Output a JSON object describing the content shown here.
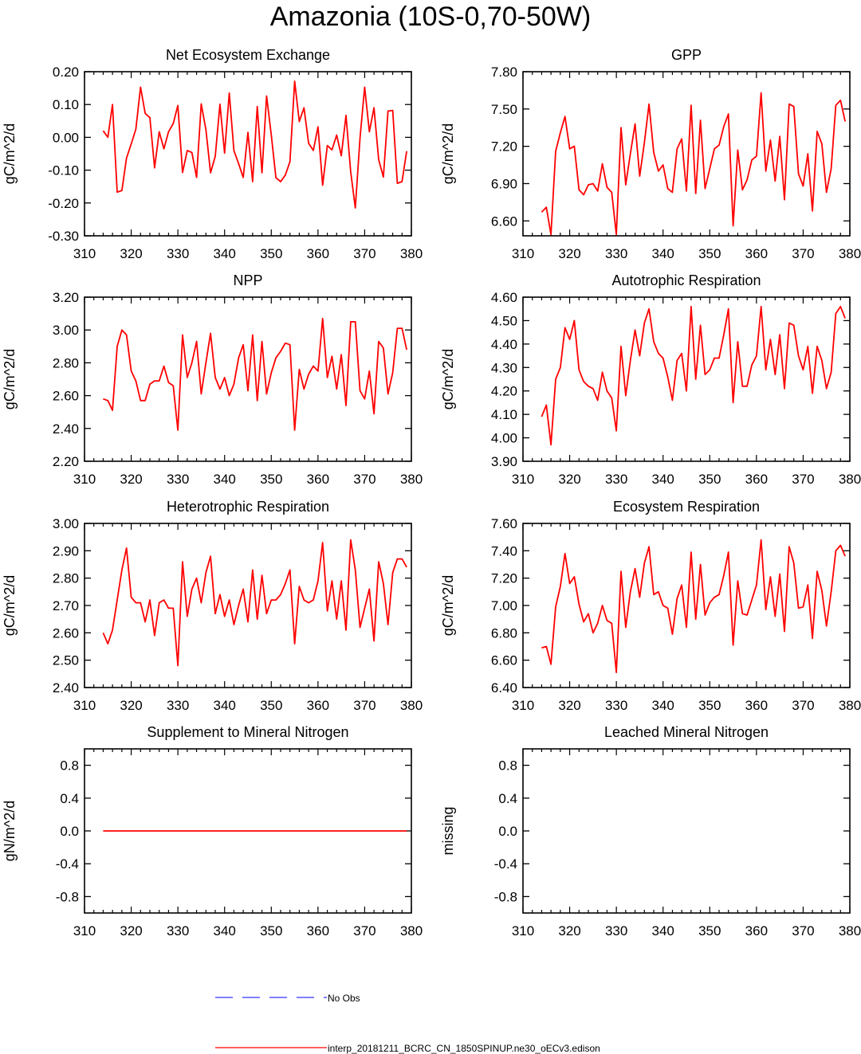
{
  "title": "Amazonia (10S-0,70-50W)",
  "series_color": "#ff0000",
  "obs_color": "#3333ff",
  "legend": {
    "obs_label": "No Obs",
    "model_label": "interp_20181211_BCRC_CN_1850SPINUP.ne30_oECv3.edison"
  },
  "chart_data": [
    {
      "type": "line",
      "title": "Net Ecosystem Exchange",
      "ylabel": "gC/m^2/d",
      "xlim": [
        310,
        380
      ],
      "ylim": [
        -0.3,
        0.2
      ],
      "yticks": [
        -0.3,
        -0.2,
        -0.1,
        0.0,
        0.1,
        0.2
      ],
      "ytick_labels": [
        "-0.30",
        "-0.20",
        "-0.10",
        "0.00",
        "0.10",
        "0.20"
      ],
      "xticks": [
        310,
        320,
        330,
        340,
        350,
        360,
        370,
        380
      ],
      "x_start": 314,
      "series": [
        {
          "values": [
            0.02,
            0.0,
            0.1,
            -0.167,
            -0.162,
            -0.063,
            -0.02,
            0.025,
            0.153,
            0.073,
            0.06,
            -0.093,
            0.017,
            -0.035,
            0.017,
            0.042,
            0.097,
            -0.107,
            -0.04,
            -0.046,
            -0.122,
            0.102,
            0.023,
            -0.108,
            -0.058,
            0.101,
            -0.048,
            0.135,
            -0.04,
            -0.08,
            -0.122,
            0.015,
            -0.135,
            0.094,
            -0.108,
            0.126,
            0.007,
            -0.123,
            -0.135,
            -0.115,
            -0.074,
            0.171,
            0.048,
            0.09,
            -0.018,
            -0.04,
            0.032,
            -0.146,
            -0.025,
            -0.038,
            0.007,
            -0.056,
            0.067,
            -0.105,
            -0.215,
            -0.002,
            0.153,
            0.017,
            0.09,
            -0.068,
            -0.121,
            0.08,
            0.082,
            -0.14,
            -0.135,
            -0.042
          ]
        }
      ]
    },
    {
      "type": "line",
      "title": "GPP",
      "ylabel": "gC/m^2/d",
      "xlim": [
        310,
        380
      ],
      "ylim": [
        6.48,
        7.8
      ],
      "yticks": [
        6.6,
        6.9,
        7.2,
        7.5,
        7.8
      ],
      "ytick_labels": [
        "6.60",
        "6.90",
        "7.20",
        "7.50",
        "7.80"
      ],
      "xticks": [
        310,
        320,
        330,
        340,
        350,
        360,
        370,
        380
      ],
      "x_start": 314,
      "series": [
        {
          "values": [
            6.67,
            6.71,
            6.49,
            7.16,
            7.31,
            7.44,
            7.18,
            7.2,
            6.85,
            6.81,
            6.89,
            6.9,
            6.84,
            7.06,
            6.87,
            6.83,
            6.49,
            7.35,
            6.89,
            7.14,
            7.38,
            6.96,
            7.23,
            7.54,
            7.15,
            7.0,
            7.05,
            6.86,
            6.83,
            7.18,
            7.26,
            6.84,
            7.53,
            6.82,
            7.41,
            6.86,
            7.02,
            7.18,
            7.21,
            7.36,
            7.46,
            6.56,
            7.17,
            6.85,
            6.93,
            7.09,
            7.12,
            7.63,
            7.0,
            7.25,
            6.92,
            7.28,
            6.77,
            7.54,
            7.52,
            6.98,
            6.88,
            7.14,
            6.68,
            7.32,
            7.22,
            6.83,
            7.02,
            7.53,
            7.57,
            7.4
          ]
        }
      ]
    },
    {
      "type": "line",
      "title": "NPP",
      "ylabel": "gC/m^2/d",
      "xlim": [
        310,
        380
      ],
      "ylim": [
        2.2,
        3.2
      ],
      "yticks": [
        2.2,
        2.4,
        2.6,
        2.8,
        3.0,
        3.2
      ],
      "ytick_labels": [
        "2.20",
        "2.40",
        "2.60",
        "2.80",
        "3.00",
        "3.20"
      ],
      "xticks": [
        310,
        320,
        330,
        340,
        350,
        360,
        370,
        380
      ],
      "x_start": 314,
      "series": [
        {
          "values": [
            2.58,
            2.57,
            2.51,
            2.9,
            3.0,
            2.97,
            2.75,
            2.69,
            2.57,
            2.57,
            2.67,
            2.69,
            2.69,
            2.78,
            2.68,
            2.66,
            2.39,
            2.97,
            2.71,
            2.8,
            2.93,
            2.61,
            2.8,
            2.98,
            2.71,
            2.64,
            2.71,
            2.6,
            2.67,
            2.83,
            2.91,
            2.63,
            2.97,
            2.57,
            2.93,
            2.61,
            2.74,
            2.83,
            2.87,
            2.92,
            2.91,
            2.39,
            2.76,
            2.64,
            2.73,
            2.78,
            2.75,
            3.07,
            2.71,
            2.84,
            2.64,
            2.85,
            2.54,
            3.05,
            3.05,
            2.63,
            2.58,
            2.75,
            2.49,
            2.93,
            2.89,
            2.61,
            2.74,
            3.01,
            3.01,
            2.88
          ]
        }
      ]
    },
    {
      "type": "line",
      "title": "Autotrophic Respiration",
      "ylabel": "gC/m^2/d",
      "xlim": [
        310,
        380
      ],
      "ylim": [
        3.9,
        4.6
      ],
      "yticks": [
        3.9,
        4.0,
        4.1,
        4.2,
        4.3,
        4.4,
        4.5,
        4.6
      ],
      "ytick_labels": [
        "3.90",
        "4.00",
        "4.10",
        "4.20",
        "4.30",
        "4.40",
        "4.50",
        "4.60"
      ],
      "xticks": [
        310,
        320,
        330,
        340,
        350,
        360,
        370,
        380
      ],
      "x_start": 314,
      "series": [
        {
          "values": [
            4.09,
            4.14,
            3.97,
            4.25,
            4.3,
            4.47,
            4.42,
            4.5,
            4.29,
            4.24,
            4.22,
            4.21,
            4.16,
            4.28,
            4.2,
            4.17,
            4.03,
            4.39,
            4.18,
            4.33,
            4.46,
            4.35,
            4.49,
            4.55,
            4.41,
            4.36,
            4.34,
            4.26,
            4.16,
            4.33,
            4.36,
            4.2,
            4.56,
            4.25,
            4.48,
            4.27,
            4.29,
            4.34,
            4.34,
            4.44,
            4.55,
            4.15,
            4.41,
            4.22,
            4.22,
            4.31,
            4.35,
            4.56,
            4.29,
            4.42,
            4.27,
            4.44,
            4.21,
            4.49,
            4.48,
            4.35,
            4.29,
            4.39,
            4.19,
            4.39,
            4.33,
            4.21,
            4.28,
            4.53,
            4.56,
            4.51
          ]
        }
      ]
    },
    {
      "type": "line",
      "title": "Heterotrophic Respiration",
      "ylabel": "gC/m^2/d",
      "xlim": [
        310,
        380
      ],
      "ylim": [
        2.4,
        3.0
      ],
      "yticks": [
        2.4,
        2.5,
        2.6,
        2.7,
        2.8,
        2.9,
        3.0
      ],
      "ytick_labels": [
        "2.40",
        "2.50",
        "2.60",
        "2.70",
        "2.80",
        "2.90",
        "3.00"
      ],
      "xticks": [
        310,
        320,
        330,
        340,
        350,
        360,
        370,
        380
      ],
      "x_start": 314,
      "series": [
        {
          "values": [
            2.6,
            2.56,
            2.61,
            2.72,
            2.83,
            2.91,
            2.73,
            2.71,
            2.71,
            2.64,
            2.72,
            2.59,
            2.71,
            2.72,
            2.69,
            2.69,
            2.48,
            2.86,
            2.66,
            2.76,
            2.8,
            2.71,
            2.82,
            2.88,
            2.67,
            2.74,
            2.66,
            2.72,
            2.63,
            2.7,
            2.76,
            2.64,
            2.83,
            2.65,
            2.81,
            2.67,
            2.72,
            2.72,
            2.74,
            2.78,
            2.83,
            2.56,
            2.77,
            2.72,
            2.71,
            2.72,
            2.79,
            2.93,
            2.68,
            2.79,
            2.65,
            2.79,
            2.61,
            2.94,
            2.83,
            2.62,
            2.69,
            2.76,
            2.57,
            2.86,
            2.78,
            2.63,
            2.82,
            2.87,
            2.87,
            2.84
          ]
        }
      ]
    },
    {
      "type": "line",
      "title": "Ecosystem Respiration",
      "ylabel": "gC/m^2/d",
      "xlim": [
        310,
        380
      ],
      "ylim": [
        6.4,
        7.6
      ],
      "yticks": [
        6.4,
        6.6,
        6.8,
        7.0,
        7.2,
        7.4,
        7.6
      ],
      "ytick_labels": [
        "6.40",
        "6.60",
        "6.80",
        "7.00",
        "7.20",
        "7.40",
        "7.60"
      ],
      "xticks": [
        310,
        320,
        330,
        340,
        350,
        360,
        370,
        380
      ],
      "x_start": 314,
      "series": [
        {
          "values": [
            6.69,
            6.7,
            6.57,
            6.99,
            7.14,
            7.38,
            7.16,
            7.21,
            7.01,
            6.88,
            6.94,
            6.8,
            6.87,
            7.0,
            6.89,
            6.87,
            6.51,
            7.25,
            6.84,
            7.1,
            7.27,
            7.06,
            7.31,
            7.43,
            7.08,
            7.1,
            7.0,
            6.98,
            6.79,
            7.05,
            7.15,
            6.84,
            7.39,
            6.9,
            7.3,
            6.93,
            7.02,
            7.06,
            7.08,
            7.22,
            7.39,
            6.71,
            7.18,
            6.94,
            6.93,
            7.04,
            7.15,
            7.48,
            6.97,
            7.21,
            6.92,
            7.23,
            6.81,
            7.43,
            7.31,
            6.98,
            6.99,
            7.15,
            6.76,
            7.25,
            7.11,
            6.85,
            7.1,
            7.4,
            7.44,
            7.36
          ]
        }
      ]
    },
    {
      "type": "line",
      "title": "Supplement to Mineral Nitrogen",
      "ylabel": "gN/m^2/d",
      "xlim": [
        310,
        380
      ],
      "ylim": [
        -1.0,
        1.0
      ],
      "yticks": [
        -0.8,
        -0.4,
        0.0,
        0.4,
        0.8
      ],
      "ytick_labels": [
        "-0.8",
        "-0.4",
        "0.0",
        "0.4",
        "0.8"
      ],
      "xticks": [
        310,
        320,
        330,
        340,
        350,
        360,
        370,
        380
      ],
      "x_start": 314,
      "series": [
        {
          "values": [
            0,
            0,
            0,
            0,
            0,
            0,
            0,
            0,
            0,
            0,
            0,
            0,
            0,
            0,
            0,
            0,
            0,
            0,
            0,
            0,
            0,
            0,
            0,
            0,
            0,
            0,
            0,
            0,
            0,
            0,
            0,
            0,
            0,
            0,
            0,
            0,
            0,
            0,
            0,
            0,
            0,
            0,
            0,
            0,
            0,
            0,
            0,
            0,
            0,
            0,
            0,
            0,
            0,
            0,
            0,
            0,
            0,
            0,
            0,
            0,
            0,
            0,
            0,
            0,
            0,
            0
          ]
        }
      ]
    },
    {
      "type": "line",
      "title": "Leached Mineral Nitrogen",
      "ylabel": "missing",
      "xlim": [
        310,
        380
      ],
      "ylim": [
        -1.0,
        1.0
      ],
      "yticks": [
        -0.8,
        -0.4,
        0.0,
        0.4,
        0.8
      ],
      "ytick_labels": [
        "-0.8",
        "-0.4",
        "0.0",
        "0.4",
        "0.8"
      ],
      "xticks": [
        310,
        320,
        330,
        340,
        350,
        360,
        370,
        380
      ],
      "x_start": 314,
      "series": []
    }
  ]
}
